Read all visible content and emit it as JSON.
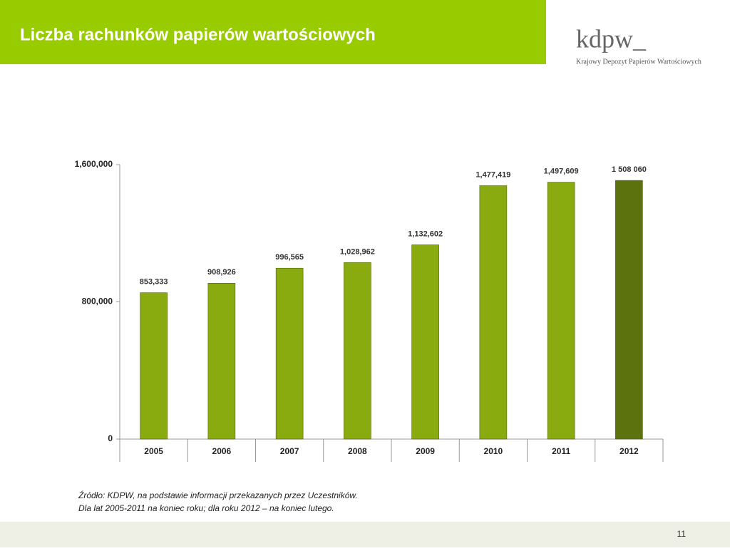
{
  "header": {
    "title": "Liczba rachunków papierów wartościowych",
    "logo": "kdpw_",
    "logo_subtitle": "Krajowy Depozyt Papierów Wartościowych"
  },
  "chart_data": {
    "type": "bar",
    "categories": [
      "2005",
      "2006",
      "2007",
      "2008",
      "2009",
      "2010",
      "2011",
      "2012"
    ],
    "values": [
      853333,
      908926,
      996565,
      1028962,
      1132602,
      1477419,
      1497609,
      1508060
    ],
    "value_labels": [
      "853,333",
      "908,926",
      "996,565",
      "1,028,962",
      "1,132,602",
      "1,477,419",
      "1,497,609",
      "1 508 060"
    ],
    "colors": [
      "#8aab0f",
      "#8aab0f",
      "#8aab0f",
      "#8aab0f",
      "#8aab0f",
      "#8aab0f",
      "#8aab0f",
      "#5b720f"
    ],
    "ylim": [
      0,
      1600000
    ],
    "yticks": [
      0,
      {
        "value": 800000,
        "label": "800,000"
      },
      {
        "value": 1600000,
        "label": "1,600,000"
      }
    ],
    "grid": false
  },
  "notes": [
    "Źródło: KDPW, na podstawie informacji przekazanych przez Uczestników.",
    "Dla lat 2005-2011 na koniec roku; dla roku 2012 – na koniec lutego."
  ],
  "footer": {
    "page": "11"
  }
}
